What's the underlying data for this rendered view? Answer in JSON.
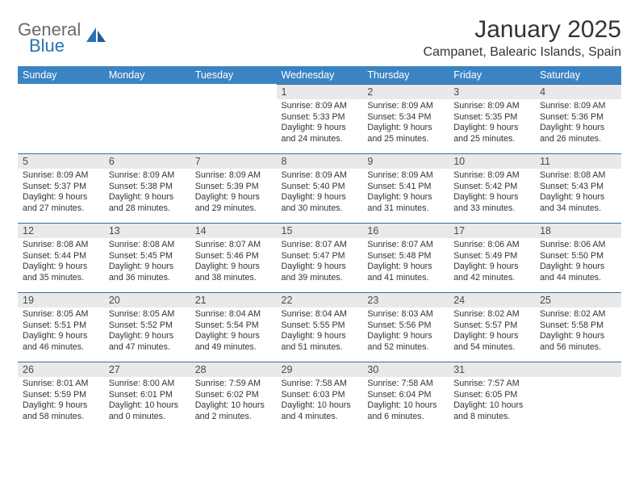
{
  "logo": {
    "text1": "General",
    "text2": "Blue"
  },
  "title": "January 2025",
  "location": "Campanet, Balearic Islands, Spain",
  "colors": {
    "header_bg": "#3b84c4",
    "header_text": "#ffffff",
    "daynum_bg": "#e9e9e9",
    "row_border": "#3b6f9e",
    "body_text": "#333333",
    "logo_gray": "#6a6a6a",
    "logo_blue": "#2a72b5"
  },
  "typography": {
    "title_fontsize": 30,
    "location_fontsize": 16,
    "header_fontsize": 12.5,
    "daynum_fontsize": 12.5,
    "content_fontsize": 10.7
  },
  "day_headers": [
    "Sunday",
    "Monday",
    "Tuesday",
    "Wednesday",
    "Thursday",
    "Friday",
    "Saturday"
  ],
  "weeks": [
    [
      null,
      null,
      null,
      {
        "n": "1",
        "sr": "8:09 AM",
        "ss": "5:33 PM",
        "dl": "9 hours and 24 minutes."
      },
      {
        "n": "2",
        "sr": "8:09 AM",
        "ss": "5:34 PM",
        "dl": "9 hours and 25 minutes."
      },
      {
        "n": "3",
        "sr": "8:09 AM",
        "ss": "5:35 PM",
        "dl": "9 hours and 25 minutes."
      },
      {
        "n": "4",
        "sr": "8:09 AM",
        "ss": "5:36 PM",
        "dl": "9 hours and 26 minutes."
      }
    ],
    [
      {
        "n": "5",
        "sr": "8:09 AM",
        "ss": "5:37 PM",
        "dl": "9 hours and 27 minutes."
      },
      {
        "n": "6",
        "sr": "8:09 AM",
        "ss": "5:38 PM",
        "dl": "9 hours and 28 minutes."
      },
      {
        "n": "7",
        "sr": "8:09 AM",
        "ss": "5:39 PM",
        "dl": "9 hours and 29 minutes."
      },
      {
        "n": "8",
        "sr": "8:09 AM",
        "ss": "5:40 PM",
        "dl": "9 hours and 30 minutes."
      },
      {
        "n": "9",
        "sr": "8:09 AM",
        "ss": "5:41 PM",
        "dl": "9 hours and 31 minutes."
      },
      {
        "n": "10",
        "sr": "8:09 AM",
        "ss": "5:42 PM",
        "dl": "9 hours and 33 minutes."
      },
      {
        "n": "11",
        "sr": "8:08 AM",
        "ss": "5:43 PM",
        "dl": "9 hours and 34 minutes."
      }
    ],
    [
      {
        "n": "12",
        "sr": "8:08 AM",
        "ss": "5:44 PM",
        "dl": "9 hours and 35 minutes."
      },
      {
        "n": "13",
        "sr": "8:08 AM",
        "ss": "5:45 PM",
        "dl": "9 hours and 36 minutes."
      },
      {
        "n": "14",
        "sr": "8:07 AM",
        "ss": "5:46 PM",
        "dl": "9 hours and 38 minutes."
      },
      {
        "n": "15",
        "sr": "8:07 AM",
        "ss": "5:47 PM",
        "dl": "9 hours and 39 minutes."
      },
      {
        "n": "16",
        "sr": "8:07 AM",
        "ss": "5:48 PM",
        "dl": "9 hours and 41 minutes."
      },
      {
        "n": "17",
        "sr": "8:06 AM",
        "ss": "5:49 PM",
        "dl": "9 hours and 42 minutes."
      },
      {
        "n": "18",
        "sr": "8:06 AM",
        "ss": "5:50 PM",
        "dl": "9 hours and 44 minutes."
      }
    ],
    [
      {
        "n": "19",
        "sr": "8:05 AM",
        "ss": "5:51 PM",
        "dl": "9 hours and 46 minutes."
      },
      {
        "n": "20",
        "sr": "8:05 AM",
        "ss": "5:52 PM",
        "dl": "9 hours and 47 minutes."
      },
      {
        "n": "21",
        "sr": "8:04 AM",
        "ss": "5:54 PM",
        "dl": "9 hours and 49 minutes."
      },
      {
        "n": "22",
        "sr": "8:04 AM",
        "ss": "5:55 PM",
        "dl": "9 hours and 51 minutes."
      },
      {
        "n": "23",
        "sr": "8:03 AM",
        "ss": "5:56 PM",
        "dl": "9 hours and 52 minutes."
      },
      {
        "n": "24",
        "sr": "8:02 AM",
        "ss": "5:57 PM",
        "dl": "9 hours and 54 minutes."
      },
      {
        "n": "25",
        "sr": "8:02 AM",
        "ss": "5:58 PM",
        "dl": "9 hours and 56 minutes."
      }
    ],
    [
      {
        "n": "26",
        "sr": "8:01 AM",
        "ss": "5:59 PM",
        "dl": "9 hours and 58 minutes."
      },
      {
        "n": "27",
        "sr": "8:00 AM",
        "ss": "6:01 PM",
        "dl": "10 hours and 0 minutes."
      },
      {
        "n": "28",
        "sr": "7:59 AM",
        "ss": "6:02 PM",
        "dl": "10 hours and 2 minutes."
      },
      {
        "n": "29",
        "sr": "7:58 AM",
        "ss": "6:03 PM",
        "dl": "10 hours and 4 minutes."
      },
      {
        "n": "30",
        "sr": "7:58 AM",
        "ss": "6:04 PM",
        "dl": "10 hours and 6 minutes."
      },
      {
        "n": "31",
        "sr": "7:57 AM",
        "ss": "6:05 PM",
        "dl": "10 hours and 8 minutes."
      },
      null
    ]
  ],
  "labels": {
    "sunrise": "Sunrise:",
    "sunset": "Sunset:",
    "daylight": "Daylight:"
  }
}
